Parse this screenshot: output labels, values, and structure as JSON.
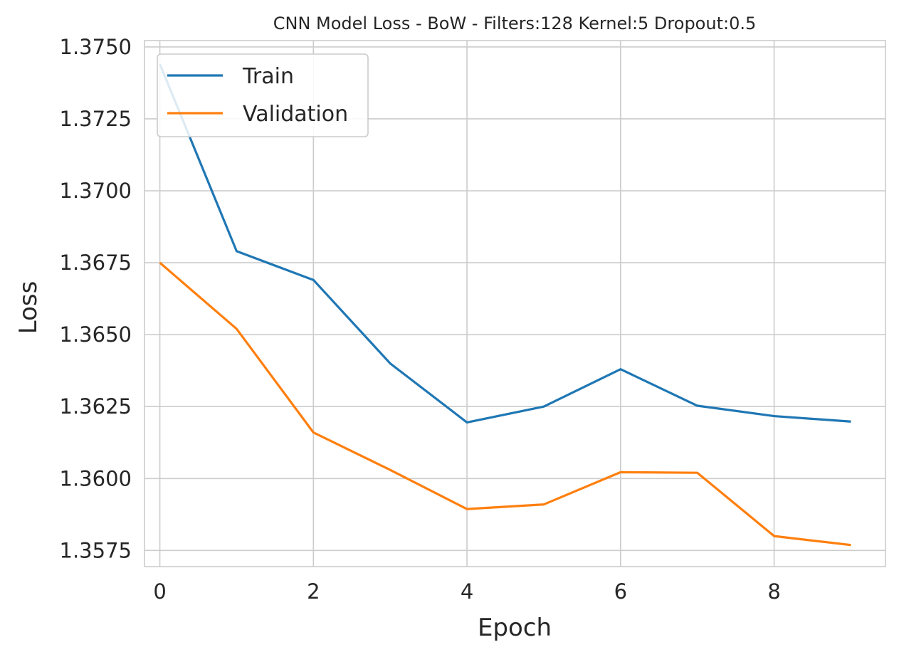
{
  "chart_data": {
    "type": "line",
    "title": "CNN Model Loss - BoW - Filters:128 Kernel:5 Dropout:0.5",
    "xlabel": "Epoch",
    "ylabel": "Loss",
    "x": [
      0,
      1,
      2,
      3,
      4,
      5,
      6,
      7,
      8,
      9
    ],
    "xlim": [
      -0.2,
      9.45
    ],
    "ylim": [
      1.35694,
      1.37522
    ],
    "xticks": [
      0,
      2,
      4,
      6,
      8
    ],
    "xtick_labels": [
      "0",
      "2",
      "4",
      "6",
      "8"
    ],
    "yticks": [
      1.3575,
      1.36,
      1.3625,
      1.365,
      1.3675,
      1.37,
      1.3725,
      1.375
    ],
    "ytick_labels": [
      "1.3575",
      "1.3600",
      "1.3625",
      "1.3650",
      "1.3675",
      "1.3700",
      "1.3725",
      "1.3750"
    ],
    "grid": true,
    "legend_position": "top-left",
    "series": [
      {
        "name": "Train",
        "color": "#1f77b4",
        "values": [
          1.3744,
          1.3679,
          1.3669,
          1.364,
          1.36195,
          1.3625,
          1.3638,
          1.36253,
          1.36217,
          1.36198
        ]
      },
      {
        "name": "Validation",
        "color": "#ff7f0e",
        "values": [
          1.3675,
          1.3652,
          1.3616,
          1.3603,
          1.35894,
          1.3591,
          1.36022,
          1.3602,
          1.358,
          1.35769
        ]
      }
    ]
  }
}
